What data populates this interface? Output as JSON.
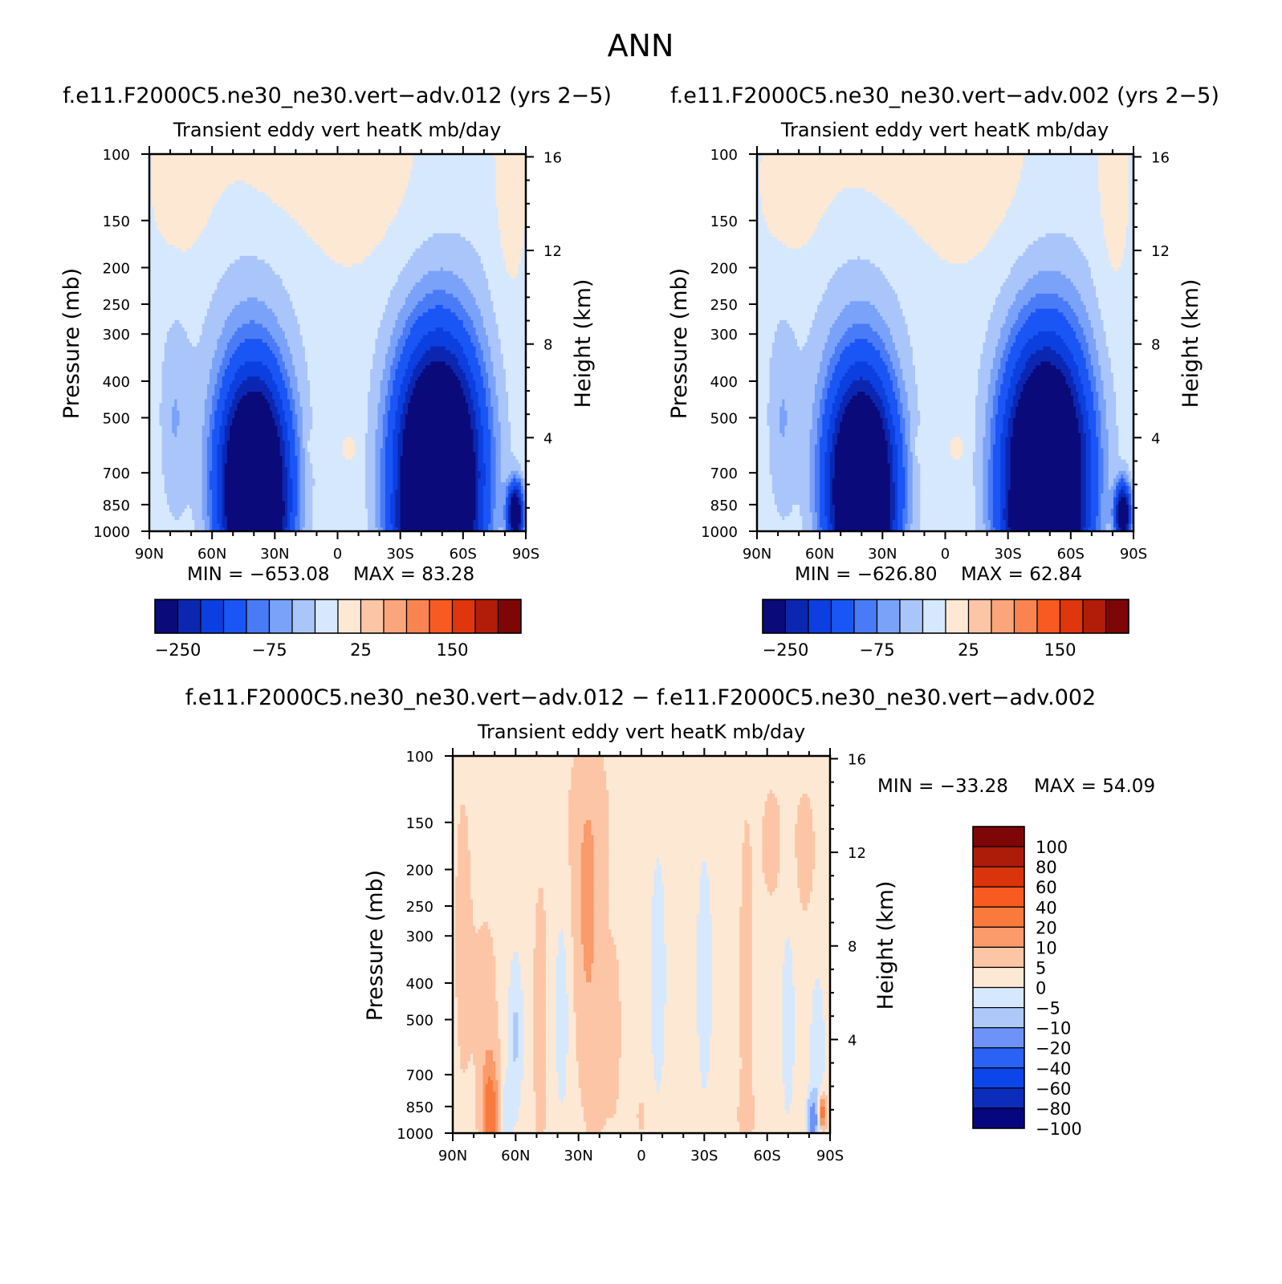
{
  "page": {
    "title": "ANN"
  },
  "palettes": {
    "abs": [
      "#0a0a7a",
      "#0b27b2",
      "#0c3fe0",
      "#1a55f5",
      "#4a7bf6",
      "#7aa2f8",
      "#aac5fa",
      "#d6e8fd",
      "#fde8d4",
      "#fcc6a6",
      "#fba57c",
      "#f98452",
      "#f85a22",
      "#e0360d",
      "#b21d0a",
      "#7e0606"
    ],
    "diff": [
      "#06077e",
      "#0c2cbb",
      "#0c46ea",
      "#2a62f5",
      "#6d93f8",
      "#aec8fa",
      "#d6e8fd",
      "#fde8d4",
      "#fcc6a6",
      "#fb9a6a",
      "#f97a3c",
      "#f85a22",
      "#da340c",
      "#ac1c09",
      "#7e0606"
    ]
  },
  "chart_data": [
    {
      "type": "heatmap",
      "case_label": "f.e11.F2000C5.ne30_ne30.vert−adv.012 (yrs 2−5)",
      "title": "Transient eddy vert heatK mb/day",
      "xlabel": "",
      "ylabel": "Pressure (mb)",
      "y2label": "Height (km)",
      "x_ticks": [
        "90N",
        "60N",
        "30N",
        "0",
        "30S",
        "60S",
        "90S"
      ],
      "y_ticks": [
        100,
        150,
        200,
        250,
        300,
        400,
        500,
        700,
        850,
        1000
      ],
      "y2_ticks": [
        16,
        12,
        8,
        4
      ],
      "xlim": [
        90,
        -90
      ],
      "ylim": [
        100,
        1000
      ],
      "y_scale": "log",
      "min_label": "MIN =  −653.08",
      "max_label": "MAX =   83.28",
      "colorbar": {
        "orientation": "horizontal",
        "levels": [
          -250,
          -200,
          -150,
          -100,
          -75,
          -50,
          -25,
          0,
          25,
          50,
          75,
          100,
          150,
          200,
          250
        ],
        "tick_labels": [
          "−250",
          "−75",
          "25",
          "150"
        ]
      },
      "field": {
        "background": -5,
        "features": [
          {
            "lat": 40,
            "p": 760,
            "amp": -520,
            "slat": 11,
            "sp": 0.45
          },
          {
            "lat": 38,
            "p": 940,
            "amp": -160,
            "slat": 7,
            "sp": 0.12
          },
          {
            "lat": -48,
            "p": 720,
            "amp": -600,
            "slat": 13,
            "sp": 0.5
          },
          {
            "lat": -46,
            "p": 950,
            "amp": -140,
            "slat": 11,
            "sp": 0.1
          },
          {
            "lat": 45,
            "p": 300,
            "amp": -28,
            "slat": 22,
            "sp": 0.55
          },
          {
            "lat": -52,
            "p": 300,
            "amp": -30,
            "slat": 22,
            "sp": 0.55
          },
          {
            "lat": 78,
            "p": 520,
            "amp": -40,
            "slat": 5,
            "sp": 0.45
          },
          {
            "lat": -85,
            "p": 900,
            "amp": -380,
            "slat": 2.5,
            "sp": 0.12
          },
          {
            "lat": 72,
            "p": 140,
            "amp": 16,
            "slat": 11,
            "sp": 0.45
          },
          {
            "lat": 25,
            "p": 110,
            "amp": 14,
            "slat": 30,
            "sp": 0.3
          },
          {
            "lat": -12,
            "p": 125,
            "amp": 16,
            "slat": 20,
            "sp": 0.4
          },
          {
            "lat": -82,
            "p": 150,
            "amp": 18,
            "slat": 6,
            "sp": 0.6
          },
          {
            "lat": 12,
            "p": 600,
            "amp": 18,
            "slat": 2.5,
            "sp": 0.06
          },
          {
            "lat": -6,
            "p": 600,
            "amp": 18,
            "slat": 3,
            "sp": 0.07
          }
        ]
      }
    },
    {
      "type": "heatmap",
      "case_label": "f.e11.F2000C5.ne30_ne30.vert−adv.002 (yrs 2−5)",
      "title": "Transient eddy vert heatK mb/day",
      "xlabel": "",
      "ylabel": "Pressure (mb)",
      "y2label": "Height (km)",
      "x_ticks": [
        "90N",
        "60N",
        "30N",
        "0",
        "30S",
        "60S",
        "90S"
      ],
      "y_ticks": [
        100,
        150,
        200,
        250,
        300,
        400,
        500,
        700,
        850,
        1000
      ],
      "y2_ticks": [
        16,
        12,
        8,
        4
      ],
      "xlim": [
        90,
        -90
      ],
      "ylim": [
        100,
        1000
      ],
      "y_scale": "log",
      "min_label": "MIN =  −626.80",
      "max_label": "MAX =   62.84",
      "colorbar": {
        "orientation": "horizontal",
        "levels": [
          -250,
          -200,
          -150,
          -100,
          -75,
          -50,
          -25,
          0,
          25,
          50,
          75,
          100,
          150,
          200,
          250
        ],
        "tick_labels": [
          "−250",
          "−75",
          "25",
          "150"
        ]
      },
      "field": {
        "background": -5,
        "features": [
          {
            "lat": 40,
            "p": 760,
            "amp": -500,
            "slat": 11,
            "sp": 0.45
          },
          {
            "lat": 38,
            "p": 940,
            "amp": -150,
            "slat": 7,
            "sp": 0.12
          },
          {
            "lat": -48,
            "p": 720,
            "amp": -580,
            "slat": 13,
            "sp": 0.5
          },
          {
            "lat": -46,
            "p": 950,
            "amp": -130,
            "slat": 11,
            "sp": 0.1
          },
          {
            "lat": 45,
            "p": 300,
            "amp": -28,
            "slat": 22,
            "sp": 0.55
          },
          {
            "lat": -52,
            "p": 300,
            "amp": -30,
            "slat": 22,
            "sp": 0.55
          },
          {
            "lat": 78,
            "p": 520,
            "amp": -40,
            "slat": 5,
            "sp": 0.45
          },
          {
            "lat": -85,
            "p": 900,
            "amp": -360,
            "slat": 2.5,
            "sp": 0.12
          },
          {
            "lat": 70,
            "p": 140,
            "amp": 16,
            "slat": 12,
            "sp": 0.45
          },
          {
            "lat": 25,
            "p": 110,
            "amp": 14,
            "slat": 30,
            "sp": 0.3
          },
          {
            "lat": -14,
            "p": 125,
            "amp": 16,
            "slat": 20,
            "sp": 0.4
          },
          {
            "lat": -80,
            "p": 150,
            "amp": 18,
            "slat": 6,
            "sp": 0.6
          },
          {
            "lat": 12,
            "p": 600,
            "amp": 18,
            "slat": 2.5,
            "sp": 0.06
          },
          {
            "lat": -6,
            "p": 600,
            "amp": 18,
            "slat": 3,
            "sp": 0.07
          }
        ]
      }
    },
    {
      "type": "heatmap",
      "case_label": "f.e11.F2000C5.ne30_ne30.vert−adv.012 − f.e11.F2000C5.ne30_ne30.vert−adv.002",
      "title": "Transient eddy vert heatK mb/day",
      "xlabel": "",
      "ylabel": "Pressure (mb)",
      "y2label": "Height (km)",
      "x_ticks": [
        "90N",
        "60N",
        "30N",
        "0",
        "30S",
        "60S",
        "90S"
      ],
      "y_ticks": [
        100,
        150,
        200,
        250,
        300,
        400,
        500,
        700,
        850,
        1000
      ],
      "y2_ticks": [
        16,
        12,
        8,
        4
      ],
      "xlim": [
        90,
        -90
      ],
      "ylim": [
        100,
        1000
      ],
      "y_scale": "log",
      "min_label": "MIN =  −33.28",
      "max_label": "MAX =   54.09",
      "colorbar": {
        "orientation": "vertical",
        "levels": [
          -100,
          -80,
          -60,
          -40,
          -20,
          -10,
          -5,
          0,
          5,
          10,
          20,
          40,
          60,
          80,
          100
        ],
        "tick_labels": [
          "−100",
          "−80",
          "−60",
          "−40",
          "−20",
          "−10",
          "−5",
          "0",
          "5",
          "10",
          "20",
          "40",
          "60",
          "80",
          "100"
        ]
      },
      "field": {
        "background": -2,
        "features": [
          {
            "lat": 85,
            "p": 300,
            "amp": 3,
            "slat": 4,
            "sp": 0.9
          },
          {
            "lat": 72,
            "p": 900,
            "amp": 16,
            "slat": 3,
            "sp": 0.25
          },
          {
            "lat": 74,
            "p": 450,
            "amp": 4,
            "slat": 4,
            "sp": 0.4
          },
          {
            "lat": 60,
            "p": 550,
            "amp": -9,
            "slat": 2.5,
            "sp": 0.35
          },
          {
            "lat": 65,
            "p": 870,
            "amp": -7,
            "slat": 2,
            "sp": 0.15
          },
          {
            "lat": 48,
            "p": 500,
            "amp": 3,
            "slat": 4,
            "sp": 0.9
          },
          {
            "lat": 38,
            "p": 480,
            "amp": -6,
            "slat": 3,
            "sp": 0.5
          },
          {
            "lat": 26,
            "p": 280,
            "amp": 7,
            "slat": 5,
            "sp": 0.5
          },
          {
            "lat": 25,
            "p": 140,
            "amp": 4,
            "slat": 7,
            "sp": 0.35
          },
          {
            "lat": 22,
            "p": 650,
            "amp": 3,
            "slat": 6,
            "sp": 0.5
          },
          {
            "lat": 12,
            "p": 500,
            "amp": 2,
            "slat": 3,
            "sp": 0.6
          },
          {
            "lat": 0,
            "p": 900,
            "amp": 3,
            "slat": 2,
            "sp": 0.1
          },
          {
            "lat": -8,
            "p": 380,
            "amp": -6,
            "slat": 3,
            "sp": 0.6
          },
          {
            "lat": -30,
            "p": 380,
            "amp": -6,
            "slat": 3,
            "sp": 0.6
          },
          {
            "lat": -50,
            "p": 400,
            "amp": 4,
            "slat": 2.5,
            "sp": 0.8
          },
          {
            "lat": -50,
            "p": 900,
            "amp": 3,
            "slat": 3,
            "sp": 0.12
          },
          {
            "lat": -62,
            "p": 170,
            "amp": 3,
            "slat": 5,
            "sp": 0.35
          },
          {
            "lat": -78,
            "p": 180,
            "amp": 3,
            "slat": 5,
            "sp": 0.4
          },
          {
            "lat": -70,
            "p": 500,
            "amp": -6,
            "slat": 2.5,
            "sp": 0.5
          },
          {
            "lat": -84,
            "p": 600,
            "amp": -7,
            "slat": 2.5,
            "sp": 0.35
          },
          {
            "lat": -82,
            "p": 920,
            "amp": -25,
            "slat": 2,
            "sp": 0.1
          },
          {
            "lat": -86,
            "p": 880,
            "amp": 20,
            "slat": 1.5,
            "sp": 0.08
          }
        ]
      }
    }
  ]
}
